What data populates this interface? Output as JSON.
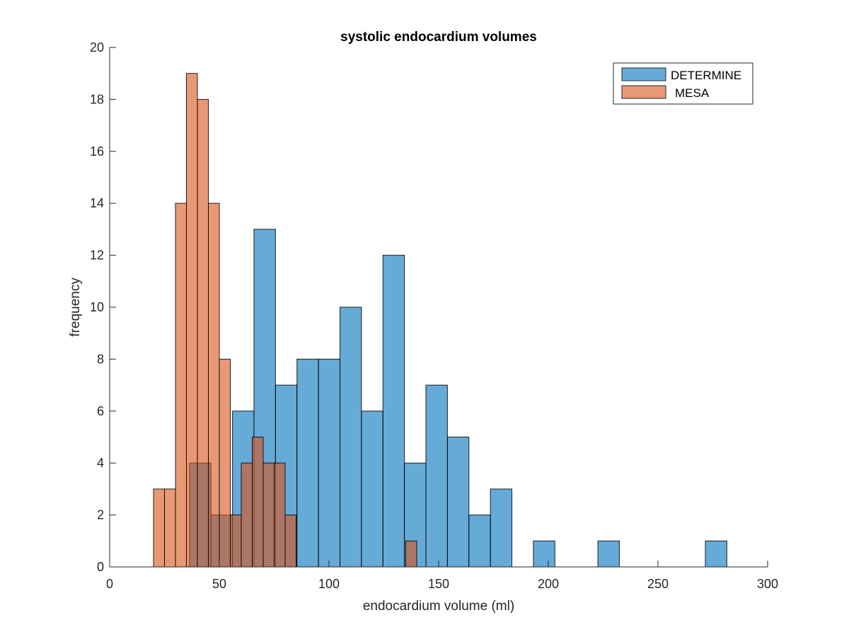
{
  "chart_data": {
    "type": "bar",
    "title": "systolic endocardium volumes",
    "xlabel": "endocardium volume (ml)",
    "ylabel": "frequency",
    "xlim": [
      0,
      300
    ],
    "ylim": [
      0,
      20
    ],
    "xticks": [
      0,
      50,
      100,
      150,
      200,
      250,
      300
    ],
    "yticks": [
      0,
      2,
      4,
      6,
      8,
      10,
      12,
      14,
      16,
      18,
      20
    ],
    "grid": false,
    "legend_position": "top-right",
    "series": [
      {
        "name": "DETERMINE",
        "color": "#0072BD",
        "bin_edges": [
          36.4,
          46.2,
          56.0,
          65.8,
          75.6,
          85.4,
          95.2,
          105.0,
          114.8,
          124.6,
          134.4,
          144.2,
          154.0,
          163.8,
          173.6,
          183.4,
          193.2,
          203.0,
          212.8,
          222.6,
          232.4,
          242.2,
          252.0,
          261.8,
          271.6,
          281.4
        ],
        "counts": [
          4,
          2,
          6,
          13,
          7,
          8,
          8,
          10,
          6,
          12,
          4,
          7,
          5,
          2,
          3,
          0,
          1,
          0,
          0,
          1,
          0,
          0,
          0,
          0,
          1
        ]
      },
      {
        "name": "MESA",
        "color": "#D95319",
        "bin_edges": [
          20.0,
          25.0,
          30.0,
          35.0,
          40.0,
          45.0,
          50.0,
          55.0,
          60.0,
          65.0,
          70.0,
          75.0,
          80.0,
          85.0,
          90.0,
          95.0,
          100.0,
          105.0,
          110.0,
          115.0,
          120.0,
          125.0,
          130.0,
          135.0,
          140.0
        ],
        "counts": [
          3,
          3,
          14,
          19,
          18,
          14,
          8,
          2,
          4,
          5,
          4,
          4,
          2,
          0,
          0,
          0,
          0,
          0,
          0,
          0,
          0,
          0,
          0,
          1
        ]
      }
    ]
  }
}
